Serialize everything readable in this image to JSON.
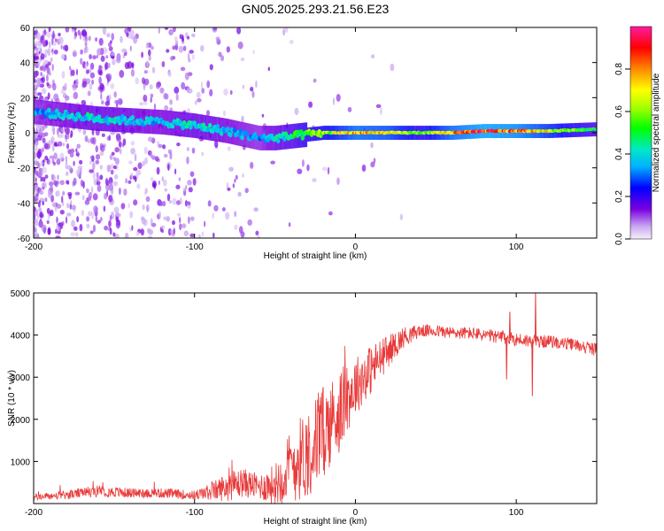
{
  "chart_data": [
    {
      "type": "heatmap",
      "title": "GN05.2025.293.21.56.E23",
      "xlabel": "Height of straight line (km)",
      "ylabel": "Frequency (Hz)",
      "xlim": [
        -200,
        150
      ],
      "ylim": [
        -60,
        60
      ],
      "x_ticks": [
        -200,
        -100,
        0,
        100
      ],
      "x_tick_labels": [
        "-200",
        "-100",
        "0",
        "100"
      ],
      "y_ticks": [
        -60,
        -40,
        -20,
        0,
        20,
        40,
        60
      ],
      "y_tick_labels": [
        "-60",
        "-40",
        "-20",
        "0",
        "20",
        "40",
        "60"
      ],
      "colorbar": {
        "label": "Normalized spectral amplitude",
        "range": [
          0,
          1
        ],
        "ticks": [
          0,
          0.2,
          0.4,
          0.6,
          0.8
        ],
        "tick_labels": [
          "0.0",
          "0.2",
          "0.4",
          "0.6",
          "0.8"
        ]
      },
      "ridge": {
        "x": [
          -200,
          -180,
          -160,
          -140,
          -120,
          -100,
          -80,
          -60,
          -50,
          -40,
          -30,
          -20,
          -10,
          0,
          20,
          40,
          60,
          80,
          100,
          120,
          150
        ],
        "frequency": [
          12,
          10,
          8,
          7,
          6,
          4,
          1,
          -3,
          -3,
          -2,
          -1,
          0,
          0,
          0,
          0,
          0,
          0,
          1,
          1,
          1,
          2
        ],
        "amplitude": [
          0.35,
          0.4,
          0.45,
          0.42,
          0.4,
          0.45,
          0.4,
          0.35,
          0.45,
          0.5,
          0.6,
          0.65,
          0.75,
          0.85,
          0.8,
          0.6,
          0.85,
          0.95,
          0.9,
          0.75,
          0.5
        ]
      }
    },
    {
      "type": "line",
      "xlabel": "Height of straight line (km)",
      "ylabel": "SNR (10 * v/v)",
      "xlim": [
        -200,
        150
      ],
      "ylim": [
        0,
        5000
      ],
      "x_ticks": [
        -200,
        -100,
        0,
        100
      ],
      "x_tick_labels": [
        "-200",
        "-100",
        "0",
        "100"
      ],
      "y_ticks": [
        1000,
        2000,
        3000,
        4000,
        5000
      ],
      "y_tick_labels": [
        "1000",
        "2000",
        "3000",
        "4000",
        "5000"
      ],
      "series": [
        {
          "name": "SNR",
          "color": "#e83a3a",
          "x": [
            -200,
            -180,
            -160,
            -140,
            -120,
            -100,
            -90,
            -80,
            -70,
            -60,
            -50,
            -40,
            -30,
            -20,
            -10,
            0,
            10,
            20,
            30,
            40,
            50,
            60,
            70,
            80,
            90,
            100,
            110,
            120,
            130,
            140,
            150
          ],
          "y": [
            150,
            200,
            300,
            250,
            250,
            200,
            280,
            400,
            500,
            400,
            450,
            900,
            1200,
            1700,
            2200,
            2800,
            3200,
            3600,
            3950,
            4100,
            4100,
            4050,
            4050,
            4000,
            3950,
            3900,
            3850,
            3850,
            3800,
            3750,
            3650
          ],
          "noise": [
            80,
            100,
            140,
            120,
            120,
            110,
            200,
            350,
            350,
            300,
            500,
            900,
            1100,
            1100,
            1000,
            700,
            600,
            400,
            250,
            150,
            150,
            150,
            150,
            150,
            160,
            160,
            160,
            150,
            150,
            150,
            150
          ],
          "spikes": [
            {
              "x": 94,
              "y": 2950
            },
            {
              "x": 96,
              "y": 4550
            },
            {
              "x": 110,
              "y": 2550
            },
            {
              "x": 112,
              "y": 5000
            }
          ]
        }
      ]
    }
  ]
}
